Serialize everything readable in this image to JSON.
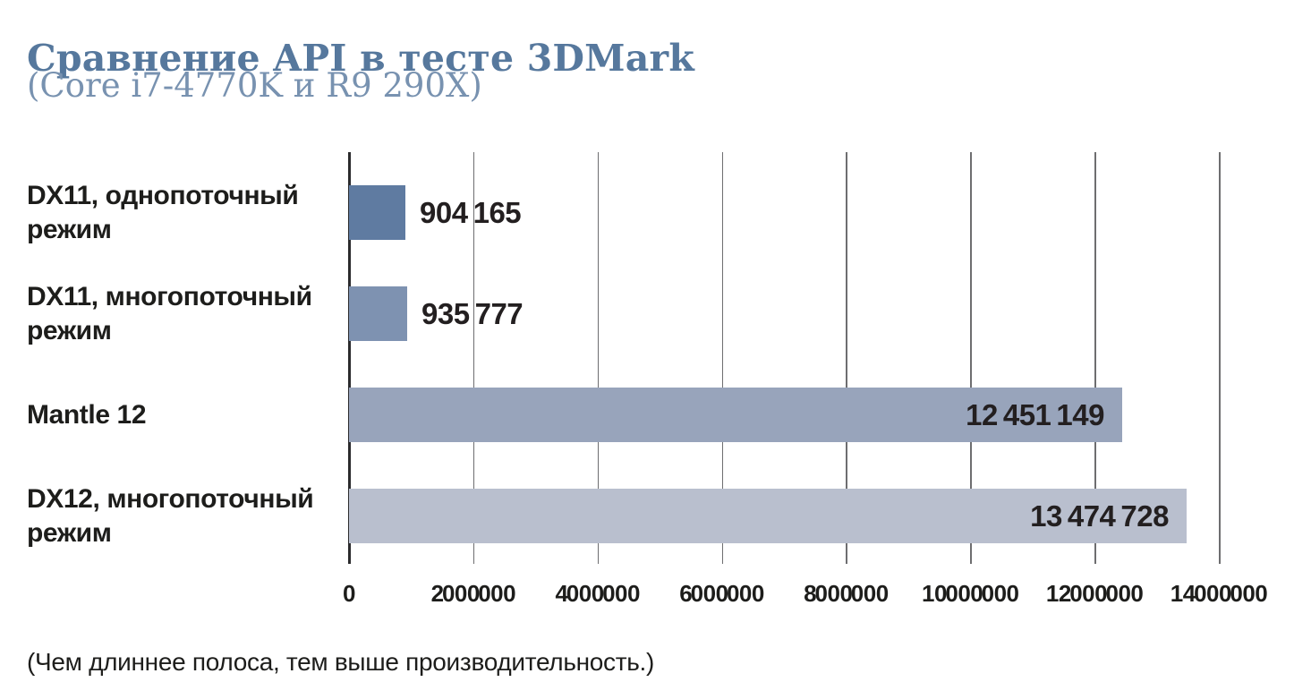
{
  "header": {
    "title": "Сравнение API в тесте 3DMark",
    "subtitle": "(Core i7-4770K и R9 290X)"
  },
  "footer": {
    "note": "(Чем длиннее полоса, тем выше производительность.)"
  },
  "colors": {
    "title": "#56789d",
    "subtitle": "#7892b0",
    "text": "#1d1d1b",
    "gridline": "#6e6e70",
    "axis": "#2b2b2d"
  },
  "chart_data": {
    "type": "bar",
    "orientation": "horizontal",
    "title": "Сравнение API в тесте 3DMark",
    "subtitle": "(Core i7-4770K и R9 290X)",
    "note": "(Чем длиннее полоса, тем выше производительность.)",
    "categories": [
      "DX11, однопоточный режим",
      "DX11, многопоточный режим",
      "Mantle 12",
      "DX12, многопоточный режим"
    ],
    "category_lines": [
      [
        "DX11, однопоточный",
        "режим"
      ],
      [
        "DX11, многопоточный",
        "режим"
      ],
      [
        "Mantle 12"
      ],
      [
        "DX12, многопоточный",
        "режим"
      ]
    ],
    "values": [
      904165,
      935777,
      12451149,
      13474728
    ],
    "value_labels": [
      "904 165",
      "935 777",
      "12 451 149",
      "13 474 728"
    ],
    "value_label_placement": [
      "outside",
      "outside",
      "inside",
      "inside"
    ],
    "bar_colors": [
      "#5f7ba1",
      "#7e92b1",
      "#98a4bb",
      "#b9bfce"
    ],
    "xlim": [
      0,
      14000000
    ],
    "x_ticks": [
      0,
      2000000,
      4000000,
      6000000,
      8000000,
      10000000,
      12000000,
      14000000
    ],
    "x_tick_labels": [
      "0",
      "2 000 000",
      "4 000 000",
      "6 000 000",
      "8 000 000",
      "10 000 000",
      "12 000 000",
      "14 000 000"
    ],
    "grid": true,
    "legend": false
  }
}
